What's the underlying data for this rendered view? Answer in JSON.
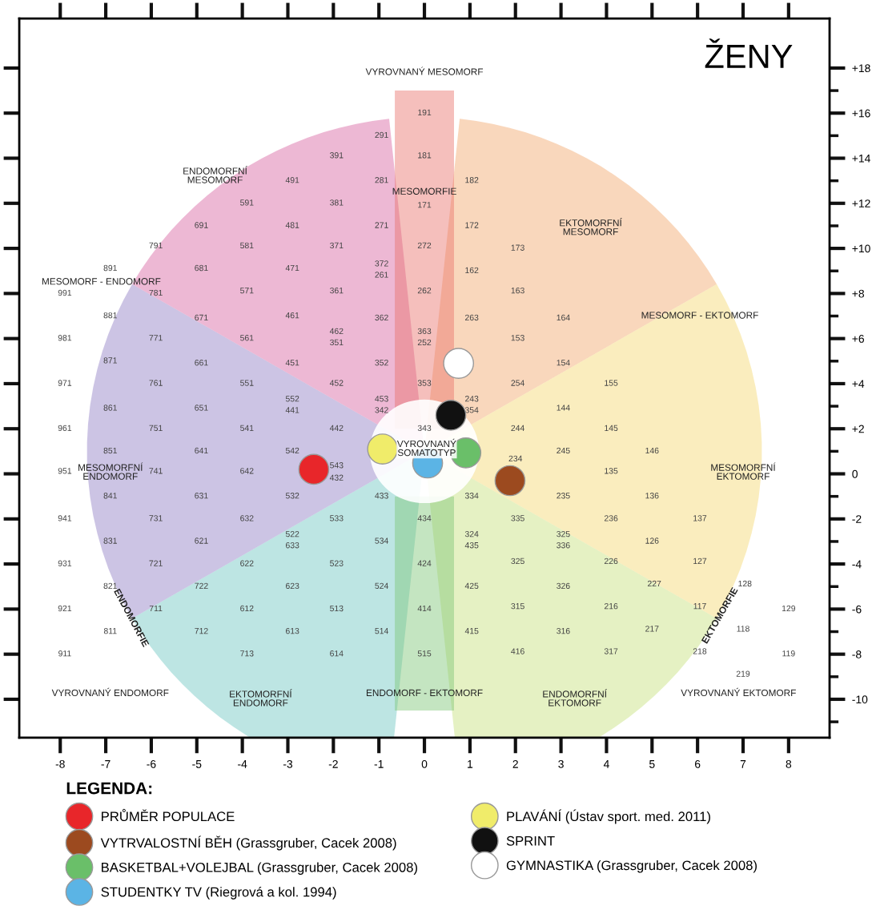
{
  "chart_data": {
    "type": "scatter",
    "title": "ŽENY",
    "legend_title": "LEGENDA:",
    "xlim": [
      -8.9,
      8.9
    ],
    "ylim": [
      -11.7,
      20.2
    ],
    "xticks": [
      -8,
      -7,
      -6,
      -5,
      -4,
      -3,
      -2,
      -1,
      0,
      1,
      2,
      3,
      4,
      5,
      6,
      7,
      8
    ],
    "yticks": [
      {
        "value": 18,
        "label": "+18"
      },
      {
        "value": 17,
        "label": null
      },
      {
        "value": 16,
        "label": "+16"
      },
      {
        "value": 15,
        "label": null
      },
      {
        "value": 14,
        "label": "+14"
      },
      {
        "value": 13,
        "label": null
      },
      {
        "value": 12,
        "label": "+12"
      },
      {
        "value": 11,
        "label": null
      },
      {
        "value": 10,
        "label": "+10"
      },
      {
        "value": 9,
        "label": null
      },
      {
        "value": 8,
        "label": "+8"
      },
      {
        "value": 7,
        "label": null
      },
      {
        "value": 6,
        "label": "+6"
      },
      {
        "value": 5,
        "label": null
      },
      {
        "value": 4,
        "label": "+4"
      },
      {
        "value": 3,
        "label": null
      },
      {
        "value": 2,
        "label": "+2"
      },
      {
        "value": 1,
        "label": null
      },
      0,
      {
        "value": -1,
        "label": null
      },
      -2,
      {
        "value": -3,
        "label": null
      },
      -4,
      {
        "value": -5,
        "label": null
      },
      -6,
      {
        "value": -7,
        "label": null
      },
      -8,
      {
        "value": -9,
        "label": null
      },
      -10,
      {
        "value": -11,
        "label": null
      }
    ],
    "grid": false,
    "legend": "bottom",
    "marker": "circle",
    "series": [
      {
        "name": "PRŮMĚR POPULACE",
        "color": "#e8262a",
        "x": [
          -2.43
        ],
        "values": [
          0.2
        ]
      },
      {
        "name": "VYTRVALOSTNÍ BĚH (Grassgruber, Cacek 2008)",
        "color": "#9c4a1f",
        "x": [
          1.88
        ],
        "values": [
          -0.3
        ]
      },
      {
        "name": "BASKETBAL+VOLEJBAL (Grassgruber, Cacek 2008)",
        "color": "#6abf69",
        "x": [
          0.91
        ],
        "values": [
          0.93
        ]
      },
      {
        "name": "STUDENTKY TV (Riegrová a kol. 1994)",
        "color": "#5bb4e5",
        "x": [
          0.07
        ],
        "values": [
          0.48
        ]
      },
      {
        "name": "PLAVÁNÍ (Ústav sport. med. 2011)",
        "color": "#f0ec6a",
        "x": [
          -0.92
        ],
        "values": [
          1.1
        ]
      },
      {
        "name": "SPRINT",
        "color": "#111111",
        "x": [
          0.58
        ],
        "values": [
          2.6
        ]
      },
      {
        "name": "GYMNASTIKA (Grassgruber, Cacek 2008)",
        "color": "#ffffff",
        "x": [
          0.75
        ],
        "values": [
          4.9
        ]
      }
    ],
    "annotations": [
      "VYROVNANÝ MESOMORF",
      "ENDOMORFNÍ\nMESOMORF",
      "MESOMORFIE",
      "EKTOMORFNÍ\nMESOMORF",
      "MESOMORF - ENDOMORF",
      "MESOMORF - EKTOMORF",
      "VYROVNANÝ\nSOMATOTYP",
      "MESOMORFNÍ\nENDOMORF",
      "MESOMORFNÍ\nEKTOMORF",
      "ENDOMORFIE",
      "EKTOMORFIE",
      "VYROVNANÝ ENDOMORF",
      "EKTOMORFNÍ\nENDOMORF",
      "ENDOMORF - EKTOMORF",
      "ENDOMORFNÍ\nEKTOMORF",
      "VYROVNANÝ EKTOMORF",
      "191",
      "291",
      "391",
      "181",
      "491",
      "281",
      "182",
      "591",
      "381",
      "171",
      "691",
      "481",
      "271",
      "172",
      "791",
      "581",
      "371",
      "272",
      "173",
      "891",
      "681",
      "471",
      "372",
      "261",
      "162",
      "991",
      "781",
      "571",
      "361",
      "262",
      "163",
      "881",
      "671",
      "461",
      "362",
      "263",
      "164",
      "981",
      "771",
      "561",
      "462",
      "351",
      "363",
      "252",
      "153",
      "871",
      "661",
      "451",
      "352",
      "154",
      "971",
      "761",
      "551",
      "452",
      "353",
      "254",
      "155",
      "552",
      "441",
      "453",
      "342",
      "243",
      "354",
      "144",
      "861",
      "651",
      "961",
      "751",
      "541",
      "442",
      "343",
      "244",
      "145",
      "851",
      "641",
      "542",
      "245",
      "146",
      "951",
      "741",
      "642",
      "543",
      "432",
      "234",
      "135",
      "841",
      "631",
      "532",
      "433",
      "334",
      "235",
      "136",
      "941",
      "731",
      "632",
      "533",
      "434",
      "335",
      "236",
      "137",
      "831",
      "621",
      "522",
      "633",
      "534",
      "324",
      "435",
      "325",
      "336",
      "126",
      "931",
      "721",
      "622",
      "523",
      "424",
      "325",
      "226",
      "127",
      "821",
      "722",
      "623",
      "524",
      "425",
      "326",
      "227",
      "128",
      "921",
      "711",
      "612",
      "513",
      "414",
      "315",
      "216",
      "117",
      "129",
      "811",
      "712",
      "613",
      "514",
      "415",
      "316",
      "217",
      "118",
      "911",
      "713",
      "614",
      "515",
      "416",
      "317",
      "218",
      "119",
      "219"
    ]
  }
}
